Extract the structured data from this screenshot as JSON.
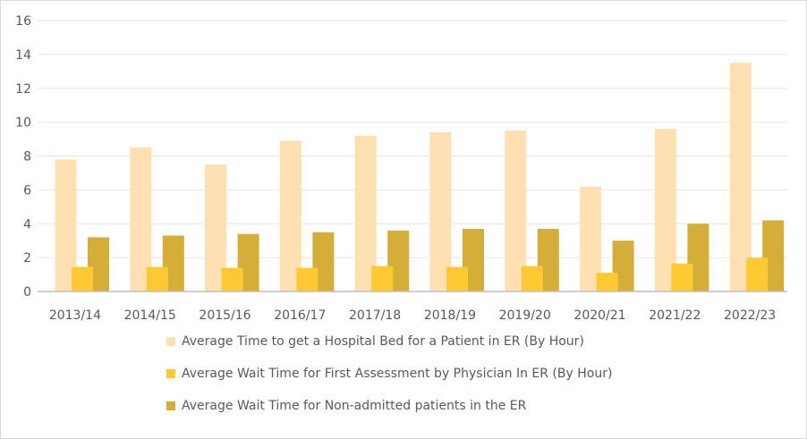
{
  "chart_data": {
    "type": "bar",
    "title": "",
    "xlabel": "",
    "ylabel": "",
    "ylim": [
      0,
      16
    ],
    "yticks": [
      0,
      2,
      4,
      6,
      8,
      10,
      12,
      14,
      16
    ],
    "grid": true,
    "legend_position": "bottom",
    "categories": [
      "2013/14",
      "2014/15",
      "2015/16",
      "2016/17",
      "2017/18",
      "2018/19",
      "2019/20",
      "2020/21",
      "2021/22",
      "2022/23"
    ],
    "series": [
      {
        "name": "Average Time to get a Hospital Bed for a Patient in ER (By Hour)",
        "color": "#FFE0B3",
        "values": [
          7.8,
          8.5,
          7.5,
          8.9,
          9.2,
          9.4,
          9.5,
          6.2,
          9.6,
          13.5
        ]
      },
      {
        "name": "Average Wait Time for First Assessment by Physician In ER (By Hour)",
        "color": "#FFC933",
        "values": [
          1.45,
          1.45,
          1.4,
          1.4,
          1.5,
          1.45,
          1.5,
          1.1,
          1.65,
          2.0
        ]
      },
      {
        "name": "Average Wait Time for Non-admitted patients in the ER",
        "color": "#D5AE3A",
        "values": [
          3.2,
          3.3,
          3.4,
          3.5,
          3.6,
          3.7,
          3.7,
          3.0,
          4.0,
          4.2
        ]
      }
    ]
  }
}
